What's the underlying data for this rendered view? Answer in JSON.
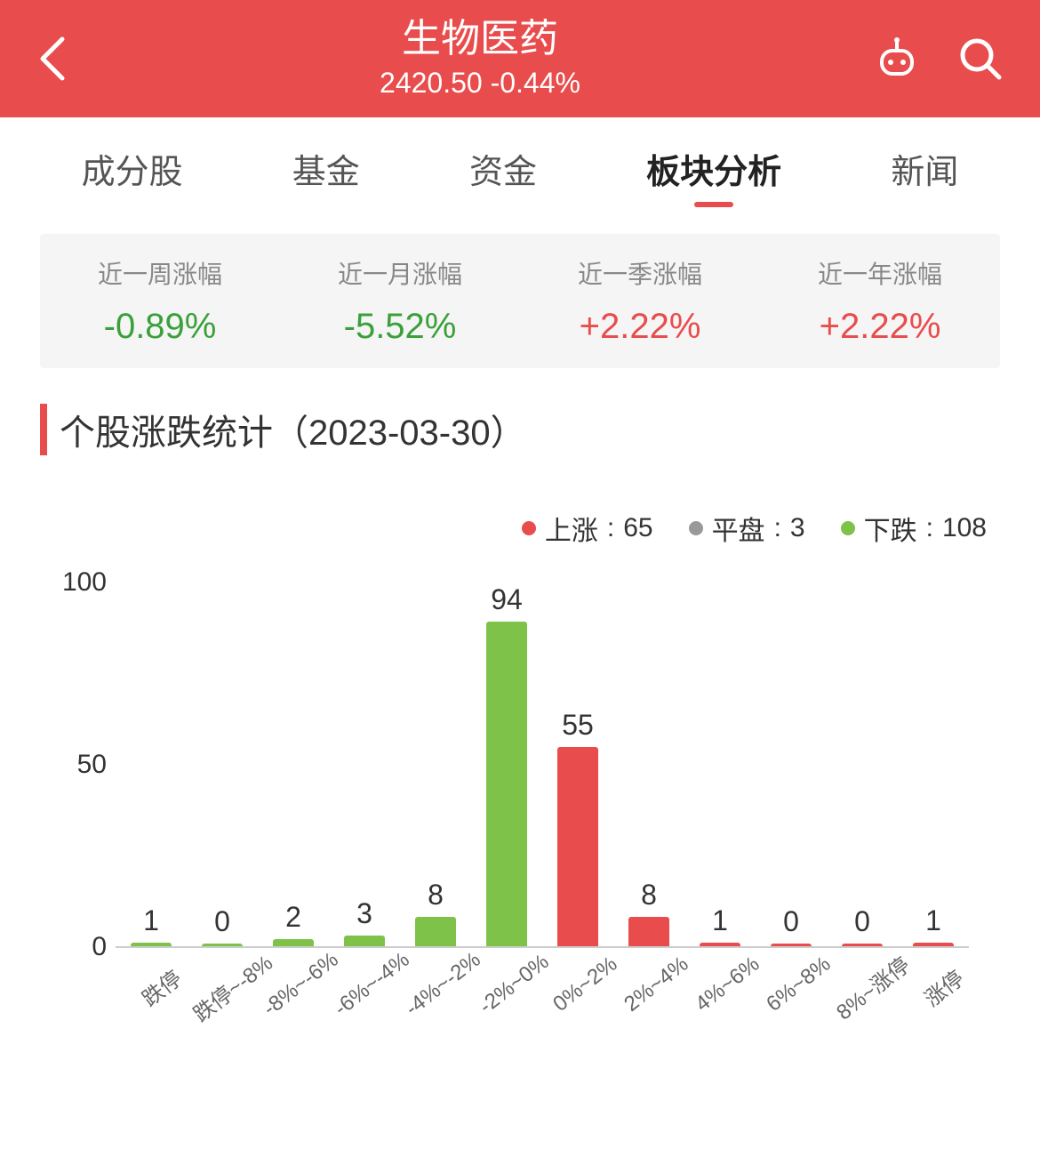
{
  "header": {
    "title": "生物医药",
    "price": "2420.50",
    "change": "-0.44%",
    "background_color": "#e94c4c",
    "text_color": "#ffffff"
  },
  "tabs": [
    {
      "label": "成分股",
      "active": false
    },
    {
      "label": "基金",
      "active": false
    },
    {
      "label": "资金",
      "active": false
    },
    {
      "label": "板块分析",
      "active": true
    },
    {
      "label": "新闻",
      "active": false
    }
  ],
  "periods": [
    {
      "label": "近一周涨幅",
      "value": "-0.89%",
      "direction": "down"
    },
    {
      "label": "近一月涨幅",
      "value": "-5.52%",
      "direction": "down"
    },
    {
      "label": "近一季涨幅",
      "value": "+2.22%",
      "direction": "up"
    },
    {
      "label": "近一年涨幅",
      "value": "+2.22%",
      "direction": "up"
    }
  ],
  "section_title": "个股涨跌统计（2023-03-30）",
  "legend": {
    "up": {
      "label": "上涨",
      "value": 65,
      "color": "#e94c4c"
    },
    "flat": {
      "label": "平盘",
      "value": 3,
      "color": "#999999"
    },
    "down": {
      "label": "下跌",
      "value": 108,
      "color": "#7fc24a"
    }
  },
  "chart": {
    "type": "bar",
    "ylim": [
      0,
      100
    ],
    "yticks": [
      0,
      50,
      100
    ],
    "ylabel_fontsize": 30,
    "value_fontsize": 32,
    "xlabel_fontsize": 24,
    "xlabel_rotation_deg": -38,
    "bar_width_ratio": 0.58,
    "background_color": "#ffffff",
    "axis_color": "#cccccc",
    "colors": {
      "down": "#7fc24a",
      "up": "#e94c4c"
    },
    "categories": [
      "跌停",
      "跌停~-8%",
      "-8%~-6%",
      "-6%~-4%",
      "-4%~-2%",
      "-2%~0%",
      "0%~2%",
      "2%~4%",
      "4%~6%",
      "6%~8%",
      "8%~涨停",
      "涨停"
    ],
    "values": [
      1,
      0,
      2,
      3,
      8,
      94,
      55,
      8,
      1,
      0,
      0,
      1
    ],
    "bar_group": [
      "down",
      "down",
      "down",
      "down",
      "down",
      "down",
      "up",
      "up",
      "up",
      "up",
      "up",
      "up"
    ]
  },
  "colors": {
    "up": "#e94c4c",
    "down": "#3aa03a",
    "text_muted": "#888888"
  }
}
